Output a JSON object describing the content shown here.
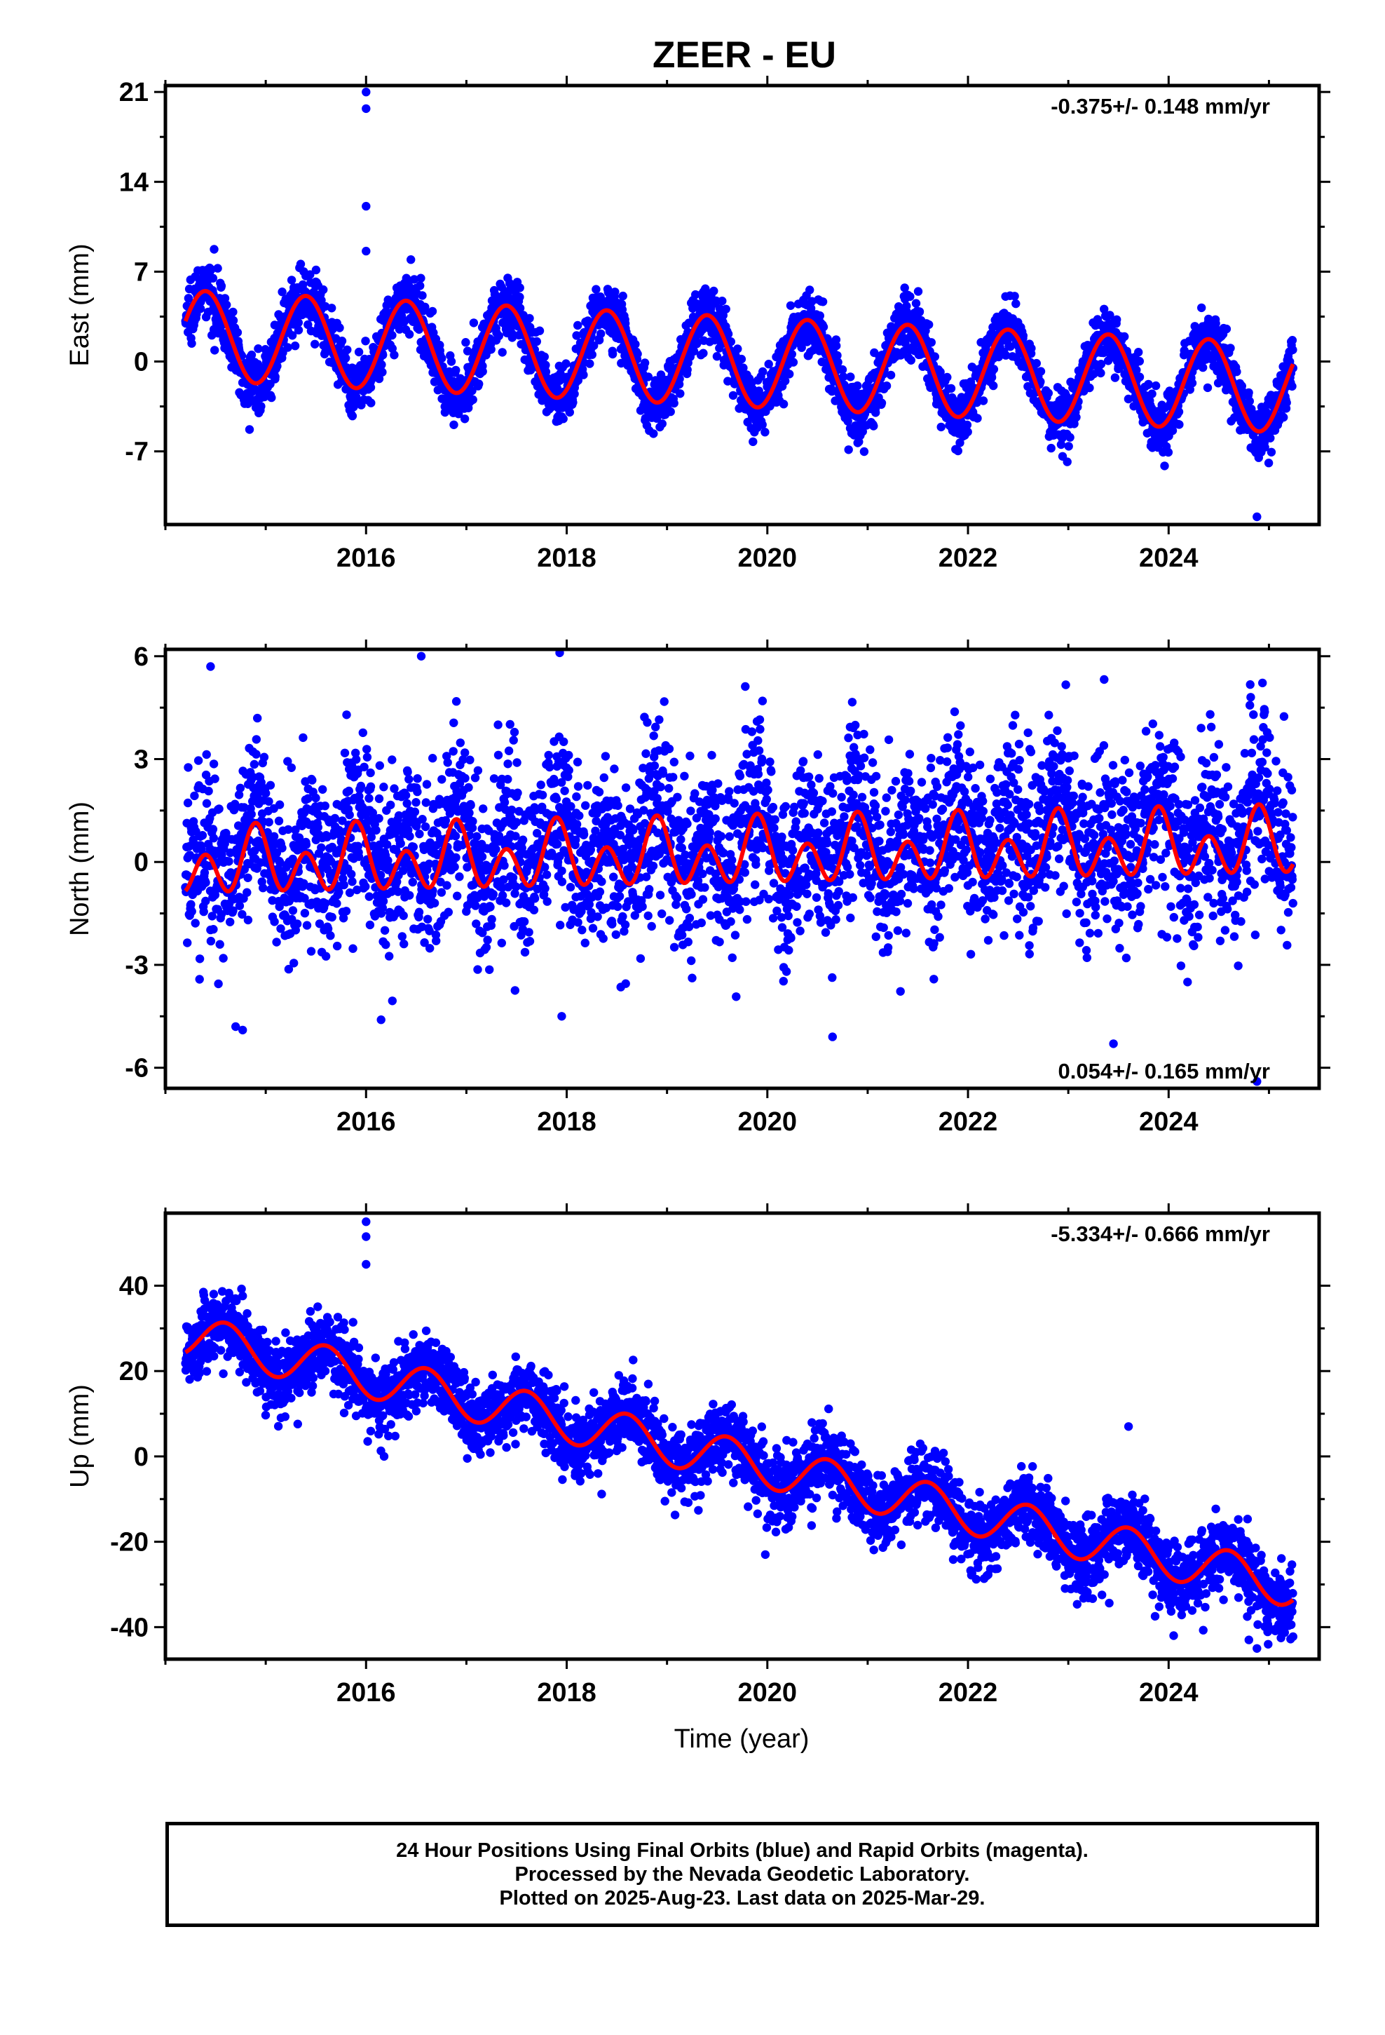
{
  "title": "ZEER - EU",
  "xlabel": "Time (year)",
  "colors": {
    "points": "#0000ff",
    "fit": "#ff0000",
    "frame": "#000000"
  },
  "footer": {
    "line1": "24 Hour Positions Using Final Orbits (blue) and Rapid Orbits (magenta).",
    "line2": "Processed by the Nevada Geodetic Laboratory.",
    "line3": "Plotted on 2025-Aug-23. Last data on 2025-Mar-29."
  },
  "chart_data": [
    {
      "type": "scatter",
      "ylabel": "East (mm)",
      "rate_label": "-0.375+/- 0.148 mm/yr",
      "rate_position": "top-right",
      "xlim": [
        2014.0,
        2025.5
      ],
      "ylim": [
        -12.7,
        21.5
      ],
      "xticks": [
        2016,
        2018,
        2020,
        2022,
        2024
      ],
      "yticks": [
        21,
        14,
        7,
        0,
        -7
      ],
      "ytick_labels": [
        "21",
        "14",
        "7",
        "0",
        "-7"
      ],
      "series": [
        {
          "role": "observations",
          "x_start": 2014.2,
          "x_end": 2025.24,
          "n": 3700,
          "fit_offset": 0.0,
          "noise_sd": 1.15,
          "outliers": [
            [
              2016.0,
              21.0
            ],
            [
              2016.0,
              19.7
            ],
            [
              2016.0,
              12.1
            ],
            [
              2016.0,
              8.6
            ],
            [
              2024.88,
              -12.1
            ]
          ]
        },
        {
          "role": "fit",
          "offset": 0.0,
          "slope": -0.375,
          "t0": 2019.7,
          "annual_amp": 3.5,
          "annual_peak": 2014.4,
          "semiannual_amp": 0.0,
          "semiannual_peak": 2014.4
        }
      ],
      "grid": false
    },
    {
      "type": "scatter",
      "ylabel": "North (mm)",
      "rate_label": "0.054+/- 0.165 mm/yr",
      "rate_position": "bottom-right",
      "xlim": [
        2014.0,
        2025.5
      ],
      "ylim": [
        -6.6,
        6.2
      ],
      "xticks": [
        2016,
        2018,
        2020,
        2022,
        2024
      ],
      "yticks": [
        6,
        3,
        0,
        -3,
        -6
      ],
      "ytick_labels": [
        "6",
        "3",
        "0",
        "-3",
        "-6"
      ],
      "series": [
        {
          "role": "observations",
          "x_start": 2014.2,
          "x_end": 2025.24,
          "n": 3700,
          "fit_offset": 0.3,
          "noise_sd": 1.25,
          "outliers": [
            [
              2014.45,
              5.7
            ],
            [
              2016.55,
              6.0
            ],
            [
              2017.93,
              6.1
            ],
            [
              2014.7,
              -4.8
            ],
            [
              2014.77,
              -4.9
            ],
            [
              2016.15,
              -4.6
            ],
            [
              2017.95,
              -4.5
            ],
            [
              2020.65,
              -5.1
            ],
            [
              2023.45,
              -5.3
            ],
            [
              2024.88,
              -6.4
            ]
          ]
        },
        {
          "role": "fit",
          "offset": 0.2,
          "slope": 0.054,
          "t0": 2019.7,
          "annual_amp": 0.45,
          "annual_peak": 2014.9,
          "semiannual_amp": 0.75,
          "semiannual_peak": 2014.9
        }
      ],
      "grid": false
    },
    {
      "type": "scatter",
      "ylabel": "Up (mm)",
      "rate_label": "-5.334+/- 0.666 mm/yr",
      "rate_position": "top-right",
      "xlim": [
        2014.0,
        2025.5
      ],
      "ylim": [
        -47.5,
        57.0
      ],
      "xticks": [
        2016,
        2018,
        2020,
        2022,
        2024
      ],
      "yticks": [
        40,
        20,
        0,
        -20,
        -40
      ],
      "ytick_labels": [
        "40",
        "20",
        "0",
        "-20",
        "-40"
      ],
      "series": [
        {
          "role": "observations",
          "x_start": 2014.2,
          "x_end": 2025.24,
          "n": 3700,
          "fit_offset": 0.0,
          "noise_sd": 4.2,
          "outliers": [
            [
              2016.0,
              55.0
            ],
            [
              2016.0,
              51.5
            ],
            [
              2016.0,
              45.0
            ],
            [
              2016.18,
              0.0
            ],
            [
              2024.88,
              -45.0
            ],
            [
              2024.8,
              -43.0
            ],
            [
              2024.05,
              -42.0
            ],
            [
              2023.6,
              7.0
            ],
            [
              2019.98,
              -23.0
            ]
          ]
        },
        {
          "role": "fit",
          "offset": -0.9,
          "slope": -5.334,
          "t0": 2019.7,
          "annual_amp": 5.0,
          "annual_peak": 2014.6,
          "semiannual_amp": 0.0,
          "semiannual_peak": 2014.6
        }
      ],
      "grid": false
    }
  ]
}
